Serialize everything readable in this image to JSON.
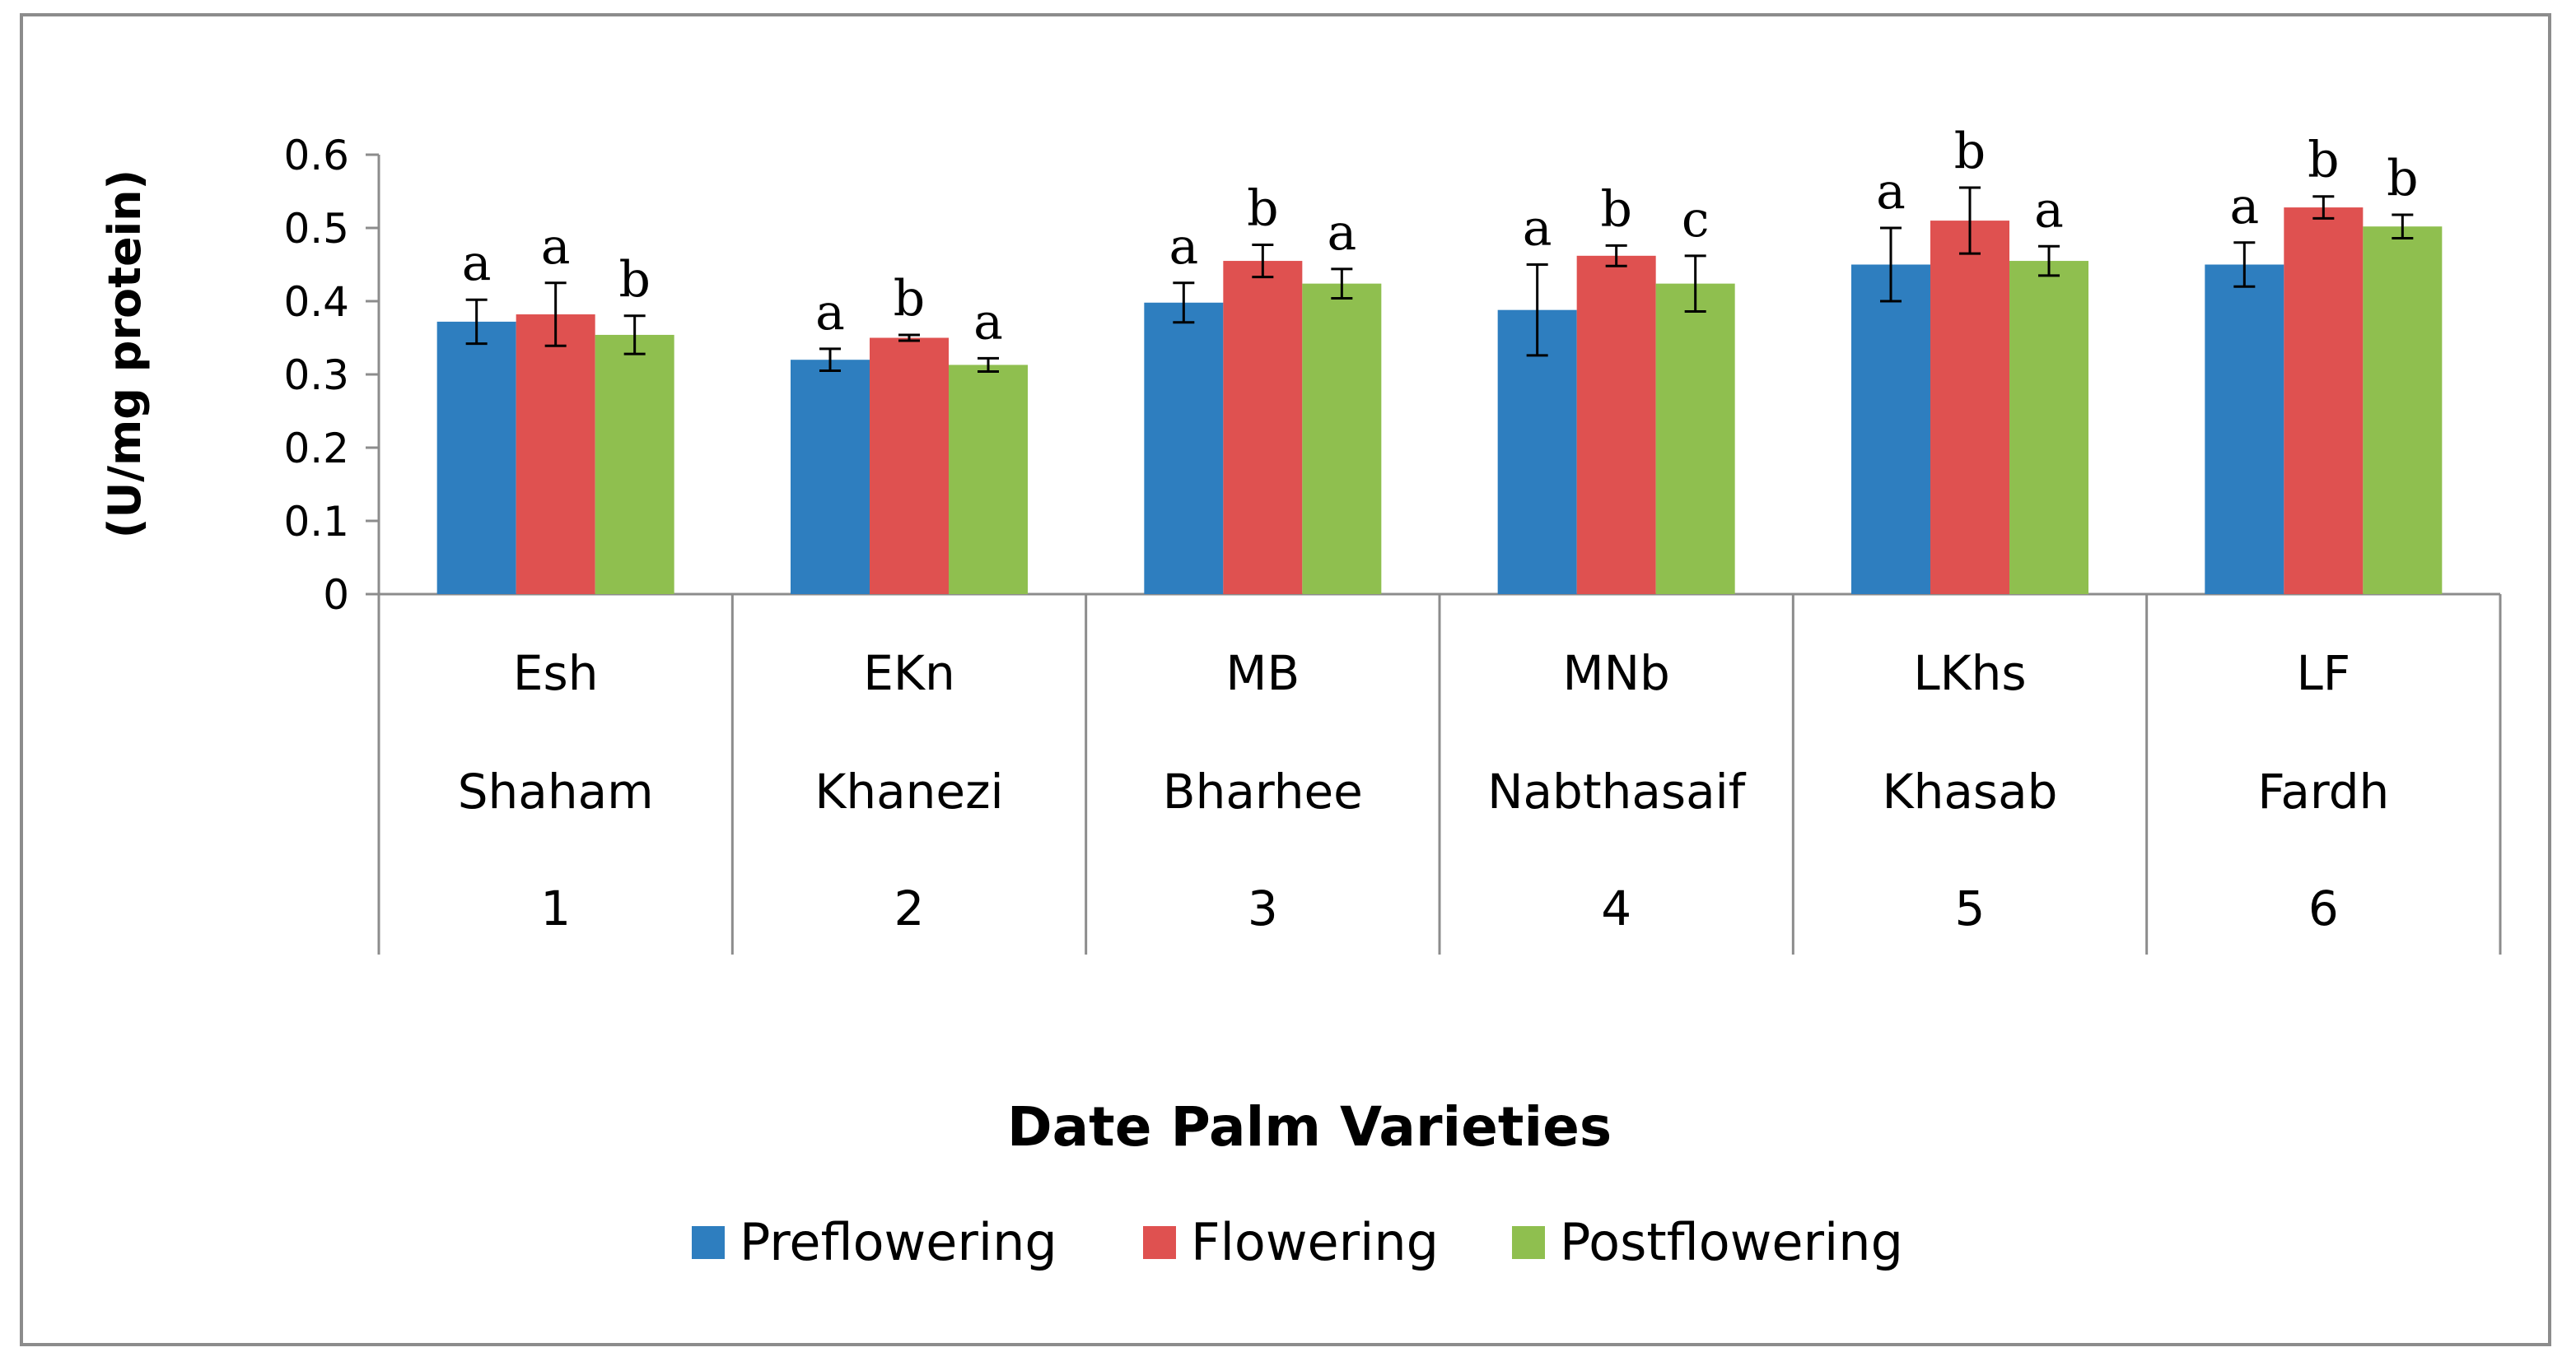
{
  "chart_data": {
    "type": "bar",
    "title": "",
    "xlabel": "Date Palm Varieties",
    "ylabel": "(U/mg protein)",
    "ylim": [
      0,
      0.6
    ],
    "yticks": [
      "0",
      "0.1",
      "0.2",
      "0.3",
      "0.4",
      "0.5",
      "0.6"
    ],
    "grid": false,
    "legend_position": "bottom",
    "categories": [
      {
        "code": "Esh",
        "name": "Shaham",
        "number": "1"
      },
      {
        "code": "EKn",
        "name": "Khanezi",
        "number": "2"
      },
      {
        "code": "MB",
        "name": "Bharhee",
        "number": "3"
      },
      {
        "code": "MNb",
        "name": "Nabthasaif",
        "number": "4"
      },
      {
        "code": "LKhs",
        "name": "Khasab",
        "number": "5"
      },
      {
        "code": "LF",
        "name": "Fardh",
        "number": "6"
      }
    ],
    "series": [
      {
        "name": "Preflowering",
        "color": "#2e7ebf",
        "values": [
          0.372,
          0.32,
          0.398,
          0.388,
          0.45,
          0.45
        ],
        "errors": [
          0.03,
          0.015,
          0.027,
          0.062,
          0.05,
          0.03
        ],
        "letters": [
          "a",
          "a",
          "a",
          "a",
          "a",
          "a"
        ]
      },
      {
        "name": "Flowering",
        "color": "#df5150",
        "values": [
          0.382,
          0.35,
          0.455,
          0.462,
          0.51,
          0.528
        ],
        "errors": [
          0.043,
          0.004,
          0.022,
          0.014,
          0.045,
          0.015
        ],
        "letters": [
          "a",
          "b",
          "b",
          "b",
          "b",
          "b"
        ]
      },
      {
        "name": "Postflowering",
        "color": "#8fbf4f",
        "values": [
          0.354,
          0.313,
          0.424,
          0.424,
          0.455,
          0.502
        ],
        "errors": [
          0.026,
          0.009,
          0.02,
          0.038,
          0.02,
          0.016
        ],
        "letters": [
          "b",
          "a",
          "a",
          "c",
          "a",
          "b"
        ]
      }
    ]
  }
}
